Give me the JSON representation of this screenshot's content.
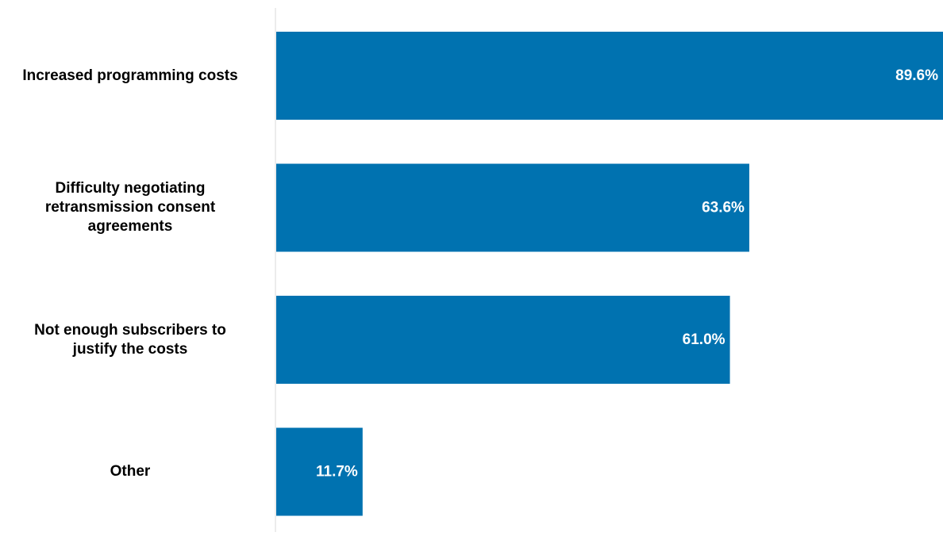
{
  "chart_data": {
    "type": "bar",
    "orientation": "horizontal",
    "categories": [
      "Increased programming costs",
      "Difficulty negotiating\nretransmission consent\nagreements",
      "Not enough subscribers to\njustify the costs",
      "Other"
    ],
    "values": [
      89.6,
      63.6,
      61.0,
      11.7
    ],
    "value_labels": [
      "89.6%",
      "63.6%",
      "61.0%",
      "11.7%"
    ],
    "xlim": [
      0,
      89.6
    ],
    "grid": false,
    "legend": "none",
    "bar_color": "#0072b0",
    "axis_color": "#d9d9d9"
  }
}
